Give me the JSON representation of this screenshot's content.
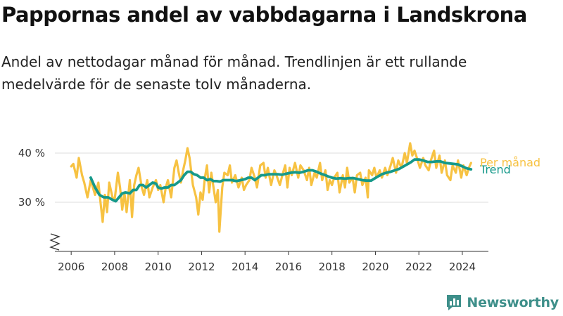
{
  "title": "Pappornas andel av vabbdagarna i Landskrona",
  "subtitle": "Andel av nettodagar månad för månad. Trendlinjen är ett rullande medelvärde för de senaste tolv månaderna.",
  "brand": "Newsworthy",
  "colors": {
    "monthly": "#f7c242",
    "trend": "#15998a",
    "axis": "#333333",
    "grid": "#dddddd",
    "brand": "#3e8f8a"
  },
  "chart_data": {
    "type": "line",
    "x_ticks": [
      "2006",
      "2008",
      "2010",
      "2012",
      "2014",
      "2016",
      "2018",
      "2020",
      "2022",
      "2024"
    ],
    "y_ticks": [
      "30 %",
      "40 %"
    ],
    "ylim": [
      20,
      43
    ],
    "xlim": [
      2005.25,
      2025.2
    ],
    "axis_break": true,
    "grid": "horizontal",
    "series": [
      {
        "name": "Per månad",
        "color": "#f7c242",
        "points": [
          [
            2006.0,
            37.3
          ],
          [
            2006.1,
            37.8
          ],
          [
            2006.25,
            35.0
          ],
          [
            2006.35,
            39.0
          ],
          [
            2006.5,
            35.5
          ],
          [
            2006.6,
            34.0
          ],
          [
            2006.75,
            31.0
          ],
          [
            2006.9,
            34.5
          ],
          [
            2007.0,
            33.0
          ],
          [
            2007.1,
            31.5
          ],
          [
            2007.25,
            34.0
          ],
          [
            2007.35,
            30.0
          ],
          [
            2007.45,
            26.0
          ],
          [
            2007.55,
            31.5
          ],
          [
            2007.65,
            28.0
          ],
          [
            2007.75,
            34.0
          ],
          [
            2007.9,
            31.0
          ],
          [
            2008.0,
            30.5
          ],
          [
            2008.15,
            36.0
          ],
          [
            2008.25,
            33.0
          ],
          [
            2008.35,
            28.5
          ],
          [
            2008.45,
            32.0
          ],
          [
            2008.55,
            28.0
          ],
          [
            2008.7,
            34.5
          ],
          [
            2008.8,
            27.0
          ],
          [
            2008.9,
            33.5
          ],
          [
            2009.0,
            35.5
          ],
          [
            2009.1,
            37.0
          ],
          [
            2009.25,
            33.0
          ],
          [
            2009.35,
            31.5
          ],
          [
            2009.5,
            34.5
          ],
          [
            2009.6,
            31.0
          ],
          [
            2009.75,
            33.0
          ],
          [
            2009.9,
            34.5
          ],
          [
            2010.0,
            32.5
          ],
          [
            2010.1,
            33.5
          ],
          [
            2010.25,
            30.0
          ],
          [
            2010.35,
            33.0
          ],
          [
            2010.45,
            34.5
          ],
          [
            2010.6,
            31.0
          ],
          [
            2010.75,
            37.0
          ],
          [
            2010.85,
            38.5
          ],
          [
            2010.95,
            36.0
          ],
          [
            2011.05,
            34.0
          ],
          [
            2011.15,
            36.5
          ],
          [
            2011.25,
            38.5
          ],
          [
            2011.35,
            41.0
          ],
          [
            2011.45,
            39.0
          ],
          [
            2011.6,
            33.5
          ],
          [
            2011.75,
            31.0
          ],
          [
            2011.85,
            27.5
          ],
          [
            2011.95,
            32.0
          ],
          [
            2012.05,
            30.5
          ],
          [
            2012.15,
            35.0
          ],
          [
            2012.25,
            37.5
          ],
          [
            2012.35,
            32.0
          ],
          [
            2012.45,
            36.0
          ],
          [
            2012.55,
            33.0
          ],
          [
            2012.65,
            30.0
          ],
          [
            2012.75,
            32.5
          ],
          [
            2012.82,
            24.0
          ],
          [
            2012.95,
            33.0
          ],
          [
            2013.05,
            36.0
          ],
          [
            2013.2,
            35.5
          ],
          [
            2013.3,
            37.5
          ],
          [
            2013.4,
            34.0
          ],
          [
            2013.55,
            35.5
          ],
          [
            2013.7,
            33.0
          ],
          [
            2013.85,
            35.0
          ],
          [
            2013.95,
            32.5
          ],
          [
            2014.05,
            33.5
          ],
          [
            2014.2,
            34.5
          ],
          [
            2014.3,
            37.0
          ],
          [
            2014.45,
            35.0
          ],
          [
            2014.55,
            33.0
          ],
          [
            2014.7,
            37.5
          ],
          [
            2014.85,
            38.0
          ],
          [
            2014.95,
            35.0
          ],
          [
            2015.05,
            37.0
          ],
          [
            2015.2,
            33.5
          ],
          [
            2015.35,
            36.5
          ],
          [
            2015.45,
            35.5
          ],
          [
            2015.6,
            33.5
          ],
          [
            2015.75,
            36.0
          ],
          [
            2015.85,
            37.5
          ],
          [
            2015.95,
            33.0
          ],
          [
            2016.05,
            37.0
          ],
          [
            2016.15,
            35.5
          ],
          [
            2016.3,
            38.0
          ],
          [
            2016.45,
            35.0
          ],
          [
            2016.55,
            37.5
          ],
          [
            2016.7,
            36.5
          ],
          [
            2016.85,
            34.5
          ],
          [
            2016.95,
            37.0
          ],
          [
            2017.05,
            33.5
          ],
          [
            2017.2,
            36.0
          ],
          [
            2017.3,
            35.0
          ],
          [
            2017.45,
            38.0
          ],
          [
            2017.55,
            34.5
          ],
          [
            2017.7,
            36.5
          ],
          [
            2017.8,
            32.5
          ],
          [
            2017.9,
            34.5
          ],
          [
            2018.0,
            33.5
          ],
          [
            2018.1,
            35.0
          ],
          [
            2018.25,
            36.0
          ],
          [
            2018.35,
            32.0
          ],
          [
            2018.5,
            35.5
          ],
          [
            2018.6,
            33.0
          ],
          [
            2018.7,
            37.0
          ],
          [
            2018.8,
            34.0
          ],
          [
            2018.95,
            35.0
          ],
          [
            2019.05,
            32.0
          ],
          [
            2019.15,
            35.5
          ],
          [
            2019.3,
            36.0
          ],
          [
            2019.4,
            33.5
          ],
          [
            2019.55,
            35.0
          ],
          [
            2019.65,
            31.0
          ],
          [
            2019.7,
            36.5
          ],
          [
            2019.85,
            35.5
          ],
          [
            2019.95,
            37.0
          ],
          [
            2020.05,
            35.0
          ],
          [
            2020.2,
            36.5
          ],
          [
            2020.3,
            35.0
          ],
          [
            2020.45,
            37.0
          ],
          [
            2020.55,
            35.5
          ],
          [
            2020.7,
            37.5
          ],
          [
            2020.8,
            39.0
          ],
          [
            2020.95,
            36.0
          ],
          [
            2021.05,
            38.5
          ],
          [
            2021.2,
            37.0
          ],
          [
            2021.35,
            40.0
          ],
          [
            2021.45,
            38.0
          ],
          [
            2021.6,
            42.0
          ],
          [
            2021.7,
            39.5
          ],
          [
            2021.8,
            40.5
          ],
          [
            2021.95,
            38.5
          ],
          [
            2022.05,
            37.0
          ],
          [
            2022.2,
            39.0
          ],
          [
            2022.3,
            37.5
          ],
          [
            2022.45,
            36.5
          ],
          [
            2022.55,
            38.5
          ],
          [
            2022.7,
            40.5
          ],
          [
            2022.8,
            37.0
          ],
          [
            2022.95,
            39.5
          ],
          [
            2023.05,
            36.0
          ],
          [
            2023.2,
            38.5
          ],
          [
            2023.3,
            35.5
          ],
          [
            2023.45,
            34.5
          ],
          [
            2023.55,
            37.5
          ],
          [
            2023.7,
            36.0
          ],
          [
            2023.8,
            38.5
          ],
          [
            2023.95,
            35.0
          ],
          [
            2024.05,
            37.5
          ],
          [
            2024.2,
            35.5
          ],
          [
            2024.3,
            37.0
          ],
          [
            2024.4,
            38.0
          ]
        ]
      },
      {
        "name": "Trend",
        "color": "#15998a",
        "points": [
          [
            2006.9,
            35.0
          ],
          [
            2007.1,
            33.0
          ],
          [
            2007.3,
            31.5
          ],
          [
            2007.5,
            31.0
          ],
          [
            2007.7,
            31.0
          ],
          [
            2007.9,
            30.5
          ],
          [
            2008.05,
            30.2
          ],
          [
            2008.2,
            31.0
          ],
          [
            2008.35,
            31.8
          ],
          [
            2008.5,
            32.0
          ],
          [
            2008.7,
            31.8
          ],
          [
            2008.85,
            32.5
          ],
          [
            2009.0,
            32.5
          ],
          [
            2009.15,
            33.5
          ],
          [
            2009.3,
            33.5
          ],
          [
            2009.45,
            33.0
          ],
          [
            2009.6,
            33.5
          ],
          [
            2009.75,
            34.0
          ],
          [
            2009.9,
            33.8
          ],
          [
            2010.0,
            33.0
          ],
          [
            2010.15,
            32.8
          ],
          [
            2010.3,
            33.0
          ],
          [
            2010.45,
            33.0
          ],
          [
            2010.6,
            33.5
          ],
          [
            2010.75,
            33.5
          ],
          [
            2010.9,
            34.0
          ],
          [
            2011.05,
            34.5
          ],
          [
            2011.2,
            35.5
          ],
          [
            2011.35,
            36.2
          ],
          [
            2011.5,
            36.2
          ],
          [
            2011.65,
            35.7
          ],
          [
            2011.8,
            35.5
          ],
          [
            2011.95,
            35.0
          ],
          [
            2012.1,
            35.0
          ],
          [
            2012.25,
            34.5
          ],
          [
            2012.4,
            34.7
          ],
          [
            2012.55,
            34.3
          ],
          [
            2012.7,
            34.3
          ],
          [
            2012.85,
            34.2
          ],
          [
            2013.0,
            34.5
          ],
          [
            2013.2,
            34.5
          ],
          [
            2013.4,
            34.5
          ],
          [
            2013.6,
            34.3
          ],
          [
            2013.8,
            34.5
          ],
          [
            2014.0,
            34.7
          ],
          [
            2014.15,
            35.0
          ],
          [
            2014.3,
            35.0
          ],
          [
            2014.45,
            34.5
          ],
          [
            2014.6,
            35.0
          ],
          [
            2014.75,
            35.5
          ],
          [
            2014.9,
            35.5
          ],
          [
            2015.1,
            35.7
          ],
          [
            2015.3,
            35.7
          ],
          [
            2015.5,
            35.7
          ],
          [
            2015.7,
            35.6
          ],
          [
            2015.9,
            35.8
          ],
          [
            2016.1,
            36.0
          ],
          [
            2016.3,
            36.1
          ],
          [
            2016.5,
            36.0
          ],
          [
            2016.7,
            36.2
          ],
          [
            2016.9,
            36.5
          ],
          [
            2017.1,
            36.5
          ],
          [
            2017.3,
            36.2
          ],
          [
            2017.5,
            35.8
          ],
          [
            2017.7,
            35.5
          ],
          [
            2017.85,
            35.2
          ],
          [
            2018.0,
            35.0
          ],
          [
            2018.2,
            34.8
          ],
          [
            2018.4,
            34.9
          ],
          [
            2018.6,
            34.8
          ],
          [
            2018.8,
            34.9
          ],
          [
            2019.0,
            34.9
          ],
          [
            2019.2,
            34.7
          ],
          [
            2019.4,
            34.5
          ],
          [
            2019.6,
            34.4
          ],
          [
            2019.8,
            34.4
          ],
          [
            2019.95,
            34.8
          ],
          [
            2020.1,
            35.2
          ],
          [
            2020.3,
            35.7
          ],
          [
            2020.5,
            36.0
          ],
          [
            2020.7,
            36.2
          ],
          [
            2020.9,
            36.5
          ],
          [
            2021.1,
            36.8
          ],
          [
            2021.3,
            37.3
          ],
          [
            2021.5,
            37.8
          ],
          [
            2021.65,
            38.2
          ],
          [
            2021.8,
            38.7
          ],
          [
            2022.0,
            38.7
          ],
          [
            2022.2,
            38.5
          ],
          [
            2022.4,
            38.2
          ],
          [
            2022.6,
            38.2
          ],
          [
            2022.8,
            38.3
          ],
          [
            2023.0,
            38.3
          ],
          [
            2023.2,
            38.0
          ],
          [
            2023.4,
            37.9
          ],
          [
            2023.6,
            37.8
          ],
          [
            2023.8,
            37.7
          ],
          [
            2024.0,
            37.3
          ],
          [
            2024.2,
            36.9
          ],
          [
            2024.4,
            36.7
          ]
        ]
      }
    ]
  }
}
